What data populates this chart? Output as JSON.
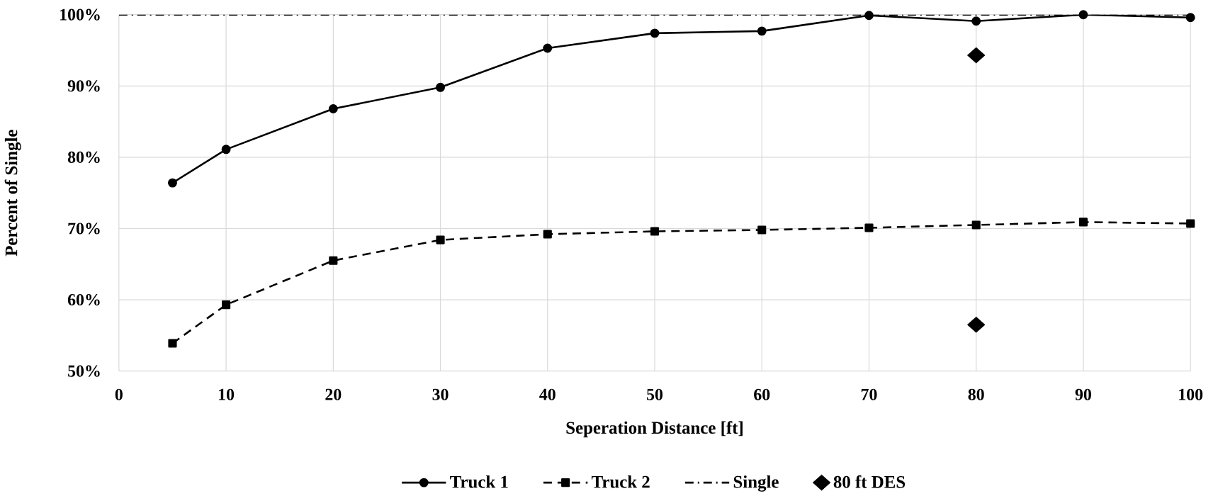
{
  "chart_data": {
    "type": "line",
    "xlabel": "Seperation Distance [ft]",
    "ylabel": "Percent of Single",
    "xlim": [
      0,
      100
    ],
    "xticks": [
      0,
      10,
      20,
      30,
      40,
      50,
      60,
      70,
      80,
      90,
      100
    ],
    "ylim": [
      50,
      100
    ],
    "yticks": [
      {
        "value": 50,
        "label": "50%"
      },
      {
        "value": 60,
        "label": "60%"
      },
      {
        "value": 70,
        "label": "70%"
      },
      {
        "value": 80,
        "label": "80%"
      },
      {
        "value": 90,
        "label": "90%"
      },
      {
        "value": 100,
        "label": "100%"
      }
    ],
    "grid": true,
    "legend": "bottom",
    "series": [
      {
        "name": "Truck 1",
        "color": "#000000",
        "marker": "circle",
        "line_style": "solid",
        "x": [
          5,
          10,
          20,
          30,
          40,
          50,
          60,
          70,
          80,
          90,
          100
        ],
        "values": [
          76.4,
          81.1,
          86.8,
          89.8,
          95.3,
          97.4,
          97.7,
          99.9,
          99.1,
          100,
          99.6
        ]
      },
      {
        "name": "Truck 2",
        "color": "#000000",
        "marker": "square",
        "line_style": "dashed",
        "x": [
          5,
          10,
          20,
          30,
          40,
          50,
          60,
          70,
          80,
          90,
          100
        ],
        "values": [
          53.9,
          59.3,
          65.5,
          68.4,
          69.2,
          69.6,
          69.8,
          70.1,
          70.5,
          70.9,
          70.7
        ]
      },
      {
        "name": "Single",
        "color": "#000000",
        "marker": "none",
        "line_style": "dashdot",
        "x": [
          0,
          100
        ],
        "values": [
          100,
          100
        ]
      },
      {
        "name": "80 ft DES",
        "type": "scatter",
        "color": "#000000",
        "marker": "diamond",
        "x": [
          80,
          80
        ],
        "values": [
          94.3,
          56.5
        ]
      }
    ]
  }
}
